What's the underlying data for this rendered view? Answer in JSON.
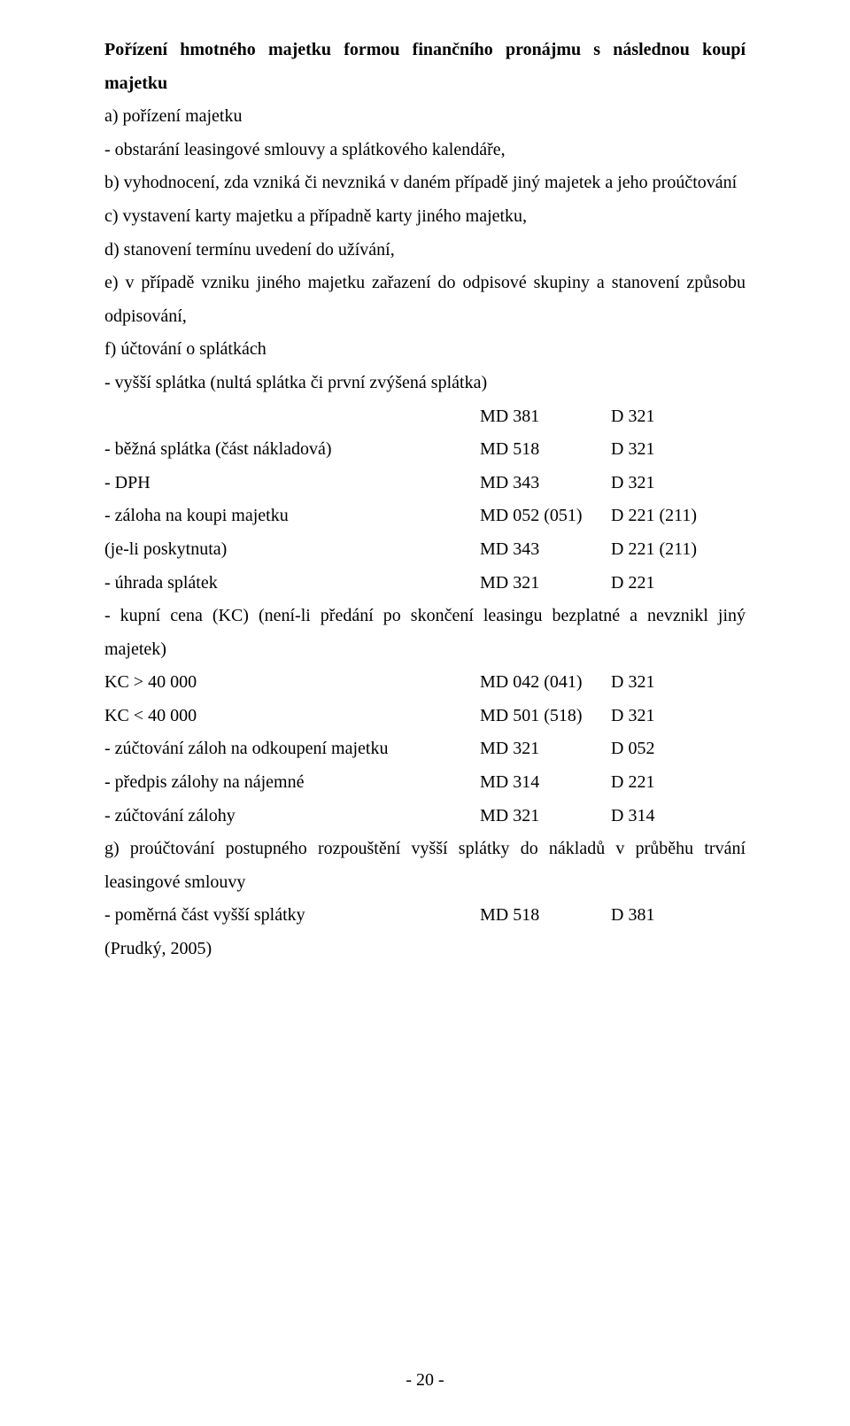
{
  "heading": "Pořízení hmotného majetku formou finančního pronájmu s následnou koupí majetku",
  "a_label": "a) pořízení majetku",
  "a_sub": "- obstarání leasingové smlouvy a splátkového kalendáře,",
  "b_text": "b) vyhodnocení, zda vzniká či nevzniká v daném případě jiný majetek a jeho proúčtování",
  "c_text": "c) vystavení karty majetku a případně karty jiného majetku,",
  "d_text": "d) stanovení termínu uvedení do užívání,",
  "e_text": "e) v případě vzniku jiného majetku zařazení do odpisové skupiny a stanovení způsobu odpisování,",
  "f_label": "f) účtování o splátkách",
  "f_sub": "- vyšší splátka (nultá splátka či první zvýšená splátka)",
  "rows": {
    "r0": {
      "label": "",
      "md": "MD 381",
      "d": "D 321"
    },
    "r1": {
      "label": "- běžná splátka (část nákladová)",
      "md": "MD 518",
      "d": "D 321"
    },
    "r2": {
      "label": "- DPH",
      "md": "MD 343",
      "d": "D 321"
    },
    "r3": {
      "label": "- záloha na koupi majetku",
      "md": "MD 052 (051)",
      "d": "D 221 (211)"
    },
    "r4": {
      "label": "(je-li poskytnuta)",
      "md": "MD 343",
      "d": "D 221 (211)"
    },
    "r5": {
      "label": "- úhrada splátek",
      "md": "MD 321",
      "d": "D 221"
    }
  },
  "kc_text": "- kupní cena (KC) (není-li předání po skončení leasingu bezplatné a nevznikl jiný majetek)",
  "rows2": {
    "r0": {
      "label": "KC > 40 000",
      "md": "MD 042 (041)",
      "d": "D 321"
    },
    "r1": {
      "label": "KC < 40 000",
      "md": "MD 501 (518)",
      "d": "D 321"
    },
    "r2": {
      "label": "- zúčtování záloh na odkoupení majetku",
      "md": "MD 321",
      "d": "D 052"
    },
    "r3": {
      "label": "- předpis zálohy na nájemné",
      "md": "MD 314",
      "d": "D 221"
    },
    "r4": {
      "label": "- zúčtování zálohy",
      "md": "MD 321",
      "d": "D 314"
    }
  },
  "g_text": "g) proúčtování postupného rozpouštění vyšší splátky do nákladů v průběhu trvání leasingové smlouvy",
  "rows3": {
    "r0": {
      "label": "- poměrná část vyšší splátky",
      "md": "MD 518",
      "d": "D 381"
    }
  },
  "cite": "(Prudký, 2005)",
  "page_number": "- 20 -"
}
